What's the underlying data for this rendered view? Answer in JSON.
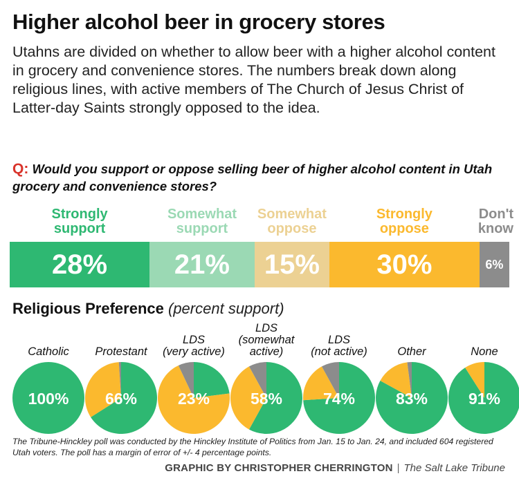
{
  "title": "Higher alcohol beer in grocery stores",
  "intro": "Utahns are divided on whether to allow beer with a higher alcohol content in grocery and convenience stores. The numbers break down along religious lines, with active members of The Church of Jesus Christ of Latter-day Saints strongly opposed to the idea.",
  "question": {
    "marker": "Q:",
    "text": "Would you support or oppose selling beer of higher alcohol content in Utah grocery and convenience stores?"
  },
  "religion_heading": {
    "title": "Religious Preference",
    "subtitle": "(percent support)"
  },
  "footnote": "The Tribune-Hinckley poll was conducted by the Hinckley Institute of Politics from Jan. 15 to Jan. 24, and included 604 registered Utah voters. The poll has a margin of error of +/- 4 percentage points.",
  "credit": {
    "byline": "GRAPHIC BY CHRISTOPHER CHERRINGTON",
    "separator": "|",
    "outlet": "The Salt Lake Tribune"
  },
  "colors": {
    "strongly_support": "#2eb872",
    "somewhat_support": "#9bd9b4",
    "somewhat_oppose": "#ecd193",
    "strongly_oppose": "#fbb92e",
    "dont_know": "#8c8c8c"
  },
  "chart_data": [
    {
      "type": "bar",
      "orientation": "horizontal-stacked",
      "title": "Would you support or oppose selling beer of higher alcohol content in Utah grocery and convenience stores?",
      "categories": [
        {
          "label_line1": "Strongly",
          "label_line2": "support",
          "value": 28,
          "display": "28%",
          "color_key": "strongly_support"
        },
        {
          "label_line1": "Somewhat",
          "label_line2": "support",
          "value": 21,
          "display": "21%",
          "color_key": "somewhat_support"
        },
        {
          "label_line1": "Somewhat",
          "label_line2": "oppose",
          "value": 15,
          "display": "15%",
          "color_key": "somewhat_oppose"
        },
        {
          "label_line1": "Strongly",
          "label_line2": "oppose",
          "value": 30,
          "display": "30%",
          "color_key": "strongly_oppose"
        },
        {
          "label_line1": "Don't",
          "label_line2": "know",
          "value": 6,
          "display": "6%",
          "color_key": "dont_know"
        }
      ]
    },
    {
      "type": "pie",
      "title": "Religious Preference (percent support)",
      "groups": [
        {
          "label_lines": [
            "Catholic"
          ],
          "support": 100,
          "oppose": 0,
          "dont_know": 0,
          "display": "100%"
        },
        {
          "label_lines": [
            "Protestant"
          ],
          "support": 66,
          "oppose": 33,
          "dont_know": 1,
          "display": "66%"
        },
        {
          "label_lines": [
            "LDS",
            "(very active)"
          ],
          "support": 23,
          "oppose": 70,
          "dont_know": 7,
          "display": "23%"
        },
        {
          "label_lines": [
            "LDS",
            "(somewhat",
            "active)"
          ],
          "support": 58,
          "oppose": 34,
          "dont_know": 8,
          "display": "58%"
        },
        {
          "label_lines": [
            "LDS",
            "(not active)"
          ],
          "support": 74,
          "oppose": 18,
          "dont_know": 8,
          "display": "74%"
        },
        {
          "label_lines": [
            "Other"
          ],
          "support": 83,
          "oppose": 15,
          "dont_know": 2,
          "display": "83%"
        },
        {
          "label_lines": [
            "None"
          ],
          "support": 91,
          "oppose": 9,
          "dont_know": 0,
          "display": "91%"
        }
      ]
    }
  ]
}
